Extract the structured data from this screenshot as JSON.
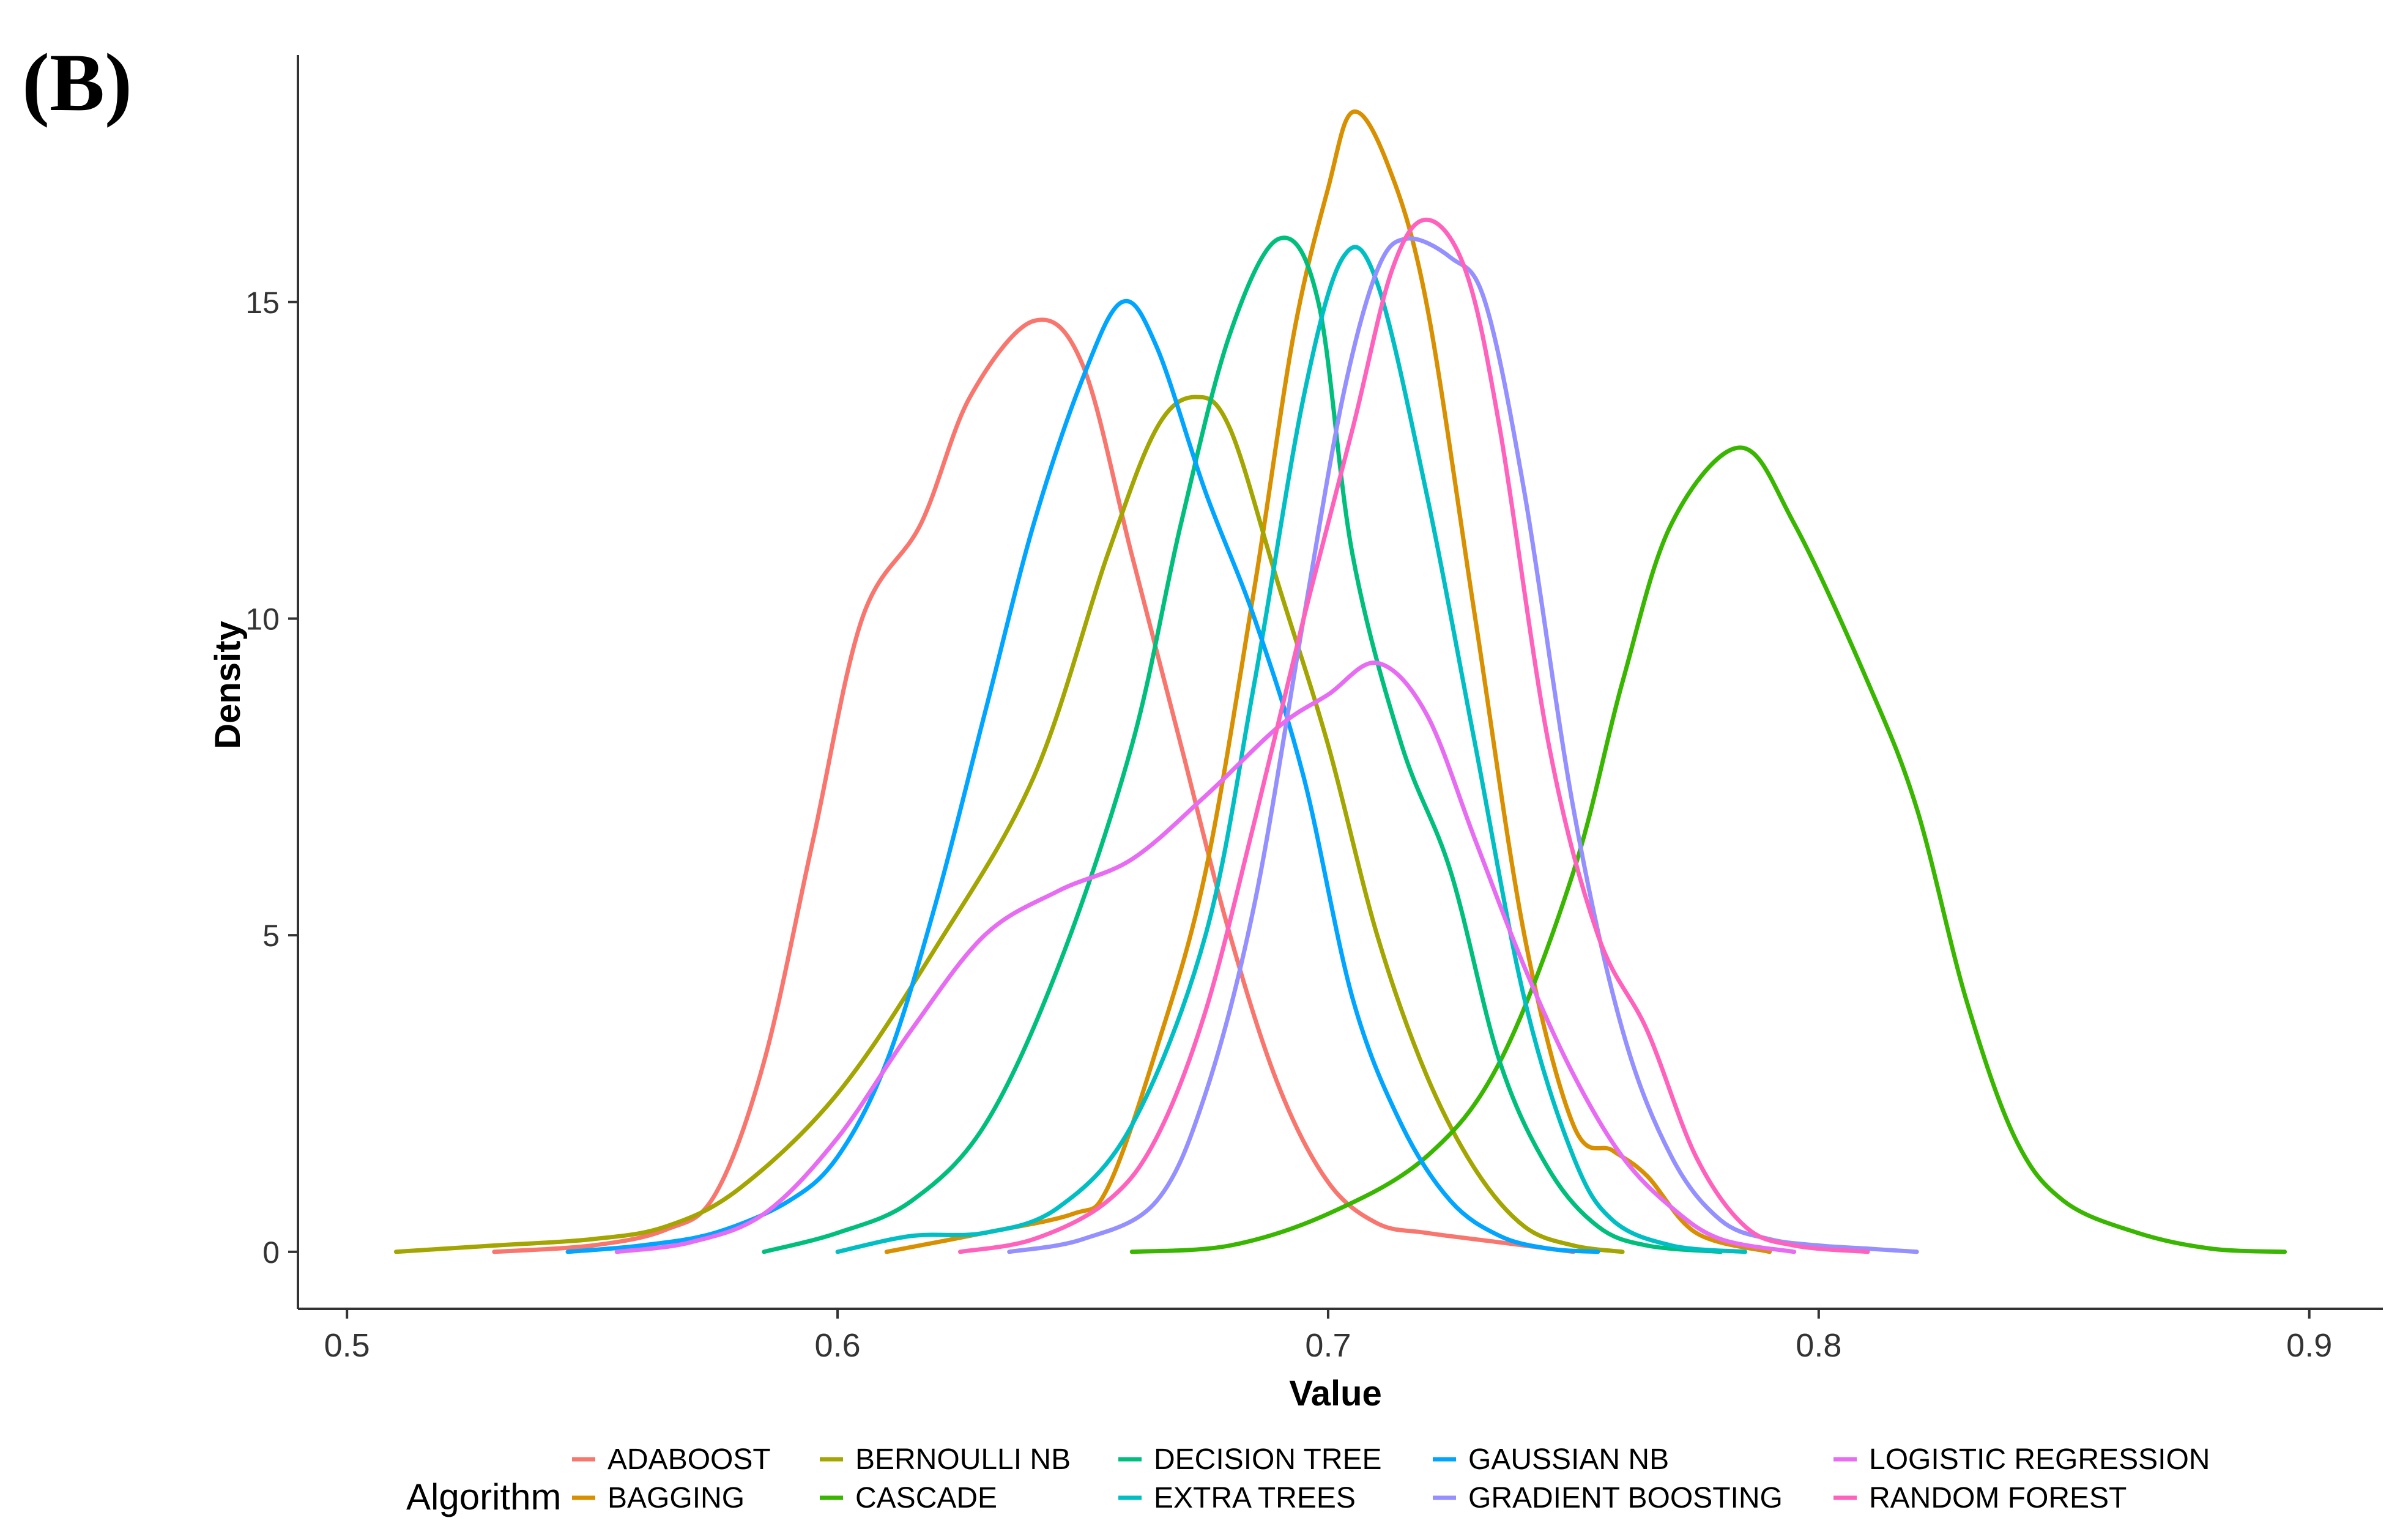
{
  "panel_label": "(B)",
  "chart_data": {
    "type": "line",
    "title": "",
    "xlabel": "Value",
    "ylabel": "Density",
    "xlim": [
      0.49,
      0.915
    ],
    "ylim": [
      -0.9,
      18.9
    ],
    "x_ticks": [
      0.5,
      0.6,
      0.7,
      0.8,
      0.9
    ],
    "x_tick_labels": [
      "0.5",
      "0.6",
      "0.7",
      "0.8",
      "0.9"
    ],
    "y_ticks": [
      0,
      5,
      10,
      15
    ],
    "y_tick_labels": [
      "0",
      "5",
      "10",
      "15"
    ],
    "grid": false,
    "legend_title": "Algorithm",
    "legend_position": "bottom",
    "series": [
      {
        "name": "ADABOOST",
        "color": "#F8766D",
        "points": [
          [
            0.53,
            0
          ],
          [
            0.55,
            0.1
          ],
          [
            0.565,
            0.35
          ],
          [
            0.575,
            0.9
          ],
          [
            0.585,
            3
          ],
          [
            0.595,
            6.5
          ],
          [
            0.605,
            10
          ],
          [
            0.617,
            11.5
          ],
          [
            0.627,
            13.5
          ],
          [
            0.64,
            14.7
          ],
          [
            0.65,
            14
          ],
          [
            0.66,
            11
          ],
          [
            0.67,
            8
          ],
          [
            0.68,
            5
          ],
          [
            0.69,
            2.6
          ],
          [
            0.7,
            1.1
          ],
          [
            0.71,
            0.45
          ],
          [
            0.72,
            0.3
          ],
          [
            0.735,
            0.15
          ],
          [
            0.75,
            0
          ]
        ]
      },
      {
        "name": "BAGGING",
        "color": "#D89000",
        "points": [
          [
            0.61,
            0
          ],
          [
            0.63,
            0.3
          ],
          [
            0.648,
            0.6
          ],
          [
            0.655,
            1
          ],
          [
            0.665,
            3.2
          ],
          [
            0.675,
            6
          ],
          [
            0.685,
            10.5
          ],
          [
            0.693,
            14.5
          ],
          [
            0.7,
            16.8
          ],
          [
            0.705,
            18
          ],
          [
            0.712,
            17.2
          ],
          [
            0.72,
            15
          ],
          [
            0.73,
            10
          ],
          [
            0.74,
            5
          ],
          [
            0.75,
            2
          ],
          [
            0.758,
            1.6
          ],
          [
            0.765,
            1.2
          ],
          [
            0.775,
            0.3
          ],
          [
            0.79,
            0
          ]
        ]
      },
      {
        "name": "BERNOULLI NB",
        "color": "#A3A500",
        "points": [
          [
            0.51,
            0
          ],
          [
            0.53,
            0.1
          ],
          [
            0.55,
            0.2
          ],
          [
            0.565,
            0.4
          ],
          [
            0.58,
            1
          ],
          [
            0.6,
            2.5
          ],
          [
            0.62,
            4.8
          ],
          [
            0.64,
            7.5
          ],
          [
            0.655,
            11
          ],
          [
            0.665,
            13
          ],
          [
            0.673,
            13.5
          ],
          [
            0.68,
            13
          ],
          [
            0.69,
            10.5
          ],
          [
            0.7,
            8
          ],
          [
            0.71,
            5
          ],
          [
            0.72,
            2.8
          ],
          [
            0.73,
            1.3
          ],
          [
            0.74,
            0.4
          ],
          [
            0.75,
            0.1
          ],
          [
            0.76,
            0
          ]
        ]
      },
      {
        "name": "CASCADE",
        "color": "#39B600",
        "points": [
          [
            0.66,
            0
          ],
          [
            0.68,
            0.1
          ],
          [
            0.7,
            0.6
          ],
          [
            0.72,
            1.5
          ],
          [
            0.735,
            3
          ],
          [
            0.75,
            6
          ],
          [
            0.76,
            9
          ],
          [
            0.77,
            11.5
          ],
          [
            0.784,
            12.7
          ],
          [
            0.795,
            11.5
          ],
          [
            0.81,
            9
          ],
          [
            0.82,
            7
          ],
          [
            0.83,
            4
          ],
          [
            0.84,
            1.8
          ],
          [
            0.85,
            0.8
          ],
          [
            0.865,
            0.3
          ],
          [
            0.88,
            0.05
          ],
          [
            0.895,
            0
          ]
        ]
      },
      {
        "name": "DECISION TREE",
        "color": "#00BF7D",
        "points": [
          [
            0.585,
            0
          ],
          [
            0.6,
            0.3
          ],
          [
            0.615,
            0.8
          ],
          [
            0.63,
            2
          ],
          [
            0.645,
            4.5
          ],
          [
            0.66,
            8
          ],
          [
            0.67,
            11.5
          ],
          [
            0.68,
            14.5
          ],
          [
            0.69,
            16
          ],
          [
            0.698,
            15
          ],
          [
            0.705,
            11
          ],
          [
            0.715,
            8
          ],
          [
            0.725,
            6
          ],
          [
            0.735,
            3
          ],
          [
            0.745,
            1.3
          ],
          [
            0.755,
            0.4
          ],
          [
            0.765,
            0.1
          ],
          [
            0.78,
            0
          ]
        ]
      },
      {
        "name": "EXTRA TREES",
        "color": "#00BFC4",
        "points": [
          [
            0.6,
            0
          ],
          [
            0.615,
            0.25
          ],
          [
            0.63,
            0.3
          ],
          [
            0.645,
            0.7
          ],
          [
            0.66,
            2
          ],
          [
            0.675,
            5
          ],
          [
            0.685,
            9
          ],
          [
            0.695,
            13.5
          ],
          [
            0.703,
            15.7
          ],
          [
            0.71,
            15.3
          ],
          [
            0.72,
            12
          ],
          [
            0.73,
            8
          ],
          [
            0.74,
            4
          ],
          [
            0.75,
            1.5
          ],
          [
            0.758,
            0.5
          ],
          [
            0.77,
            0.1
          ],
          [
            0.785,
            0
          ]
        ]
      },
      {
        "name": "GAUSSIAN NB",
        "color": "#00A5FF",
        "points": [
          [
            0.545,
            0
          ],
          [
            0.56,
            0.1
          ],
          [
            0.575,
            0.3
          ],
          [
            0.59,
            0.8
          ],
          [
            0.6,
            1.5
          ],
          [
            0.61,
            3
          ],
          [
            0.62,
            5.5
          ],
          [
            0.63,
            8.5
          ],
          [
            0.64,
            11.5
          ],
          [
            0.65,
            13.8
          ],
          [
            0.658,
            15
          ],
          [
            0.665,
            14.3
          ],
          [
            0.675,
            12
          ],
          [
            0.685,
            10
          ],
          [
            0.695,
            7.5
          ],
          [
            0.705,
            4
          ],
          [
            0.715,
            2
          ],
          [
            0.725,
            0.8
          ],
          [
            0.735,
            0.25
          ],
          [
            0.745,
            0.05
          ],
          [
            0.755,
            0
          ]
        ]
      },
      {
        "name": "GRADIENT BOOSTING",
        "color": "#9590FF",
        "points": [
          [
            0.635,
            0
          ],
          [
            0.65,
            0.2
          ],
          [
            0.665,
            0.8
          ],
          [
            0.675,
            2.5
          ],
          [
            0.685,
            5.5
          ],
          [
            0.695,
            10
          ],
          [
            0.703,
            13.5
          ],
          [
            0.71,
            15.5
          ],
          [
            0.716,
            16
          ],
          [
            0.725,
            15.7
          ],
          [
            0.732,
            15
          ],
          [
            0.74,
            12
          ],
          [
            0.75,
            7
          ],
          [
            0.76,
            3.5
          ],
          [
            0.77,
            1.5
          ],
          [
            0.78,
            0.5
          ],
          [
            0.79,
            0.2
          ],
          [
            0.8,
            0.1
          ],
          [
            0.81,
            0.05
          ],
          [
            0.82,
            0
          ]
        ]
      },
      {
        "name": "LOGISTIC REGRESSION",
        "color": "#E76BF3",
        "points": [
          [
            0.555,
            0
          ],
          [
            0.57,
            0.15
          ],
          [
            0.585,
            0.6
          ],
          [
            0.6,
            1.8
          ],
          [
            0.615,
            3.5
          ],
          [
            0.63,
            5
          ],
          [
            0.645,
            5.7
          ],
          [
            0.66,
            6.2
          ],
          [
            0.675,
            7.2
          ],
          [
            0.69,
            8.3
          ],
          [
            0.7,
            8.8
          ],
          [
            0.71,
            9.3
          ],
          [
            0.72,
            8.5
          ],
          [
            0.73,
            6.5
          ],
          [
            0.74,
            4.5
          ],
          [
            0.75,
            2.8
          ],
          [
            0.76,
            1.5
          ],
          [
            0.77,
            0.7
          ],
          [
            0.78,
            0.2
          ],
          [
            0.795,
            0
          ]
        ]
      },
      {
        "name": "RANDOM FOREST",
        "color": "#FF62BC",
        "points": [
          [
            0.625,
            0
          ],
          [
            0.64,
            0.2
          ],
          [
            0.655,
            0.8
          ],
          [
            0.665,
            1.8
          ],
          [
            0.675,
            3.8
          ],
          [
            0.685,
            6.8
          ],
          [
            0.695,
            10
          ],
          [
            0.705,
            13
          ],
          [
            0.713,
            15.5
          ],
          [
            0.72,
            16.3
          ],
          [
            0.728,
            15.5
          ],
          [
            0.735,
            13
          ],
          [
            0.745,
            8
          ],
          [
            0.755,
            5
          ],
          [
            0.765,
            3.5
          ],
          [
            0.775,
            1.5
          ],
          [
            0.785,
            0.4
          ],
          [
            0.795,
            0.1
          ],
          [
            0.81,
            0
          ]
        ]
      }
    ]
  }
}
